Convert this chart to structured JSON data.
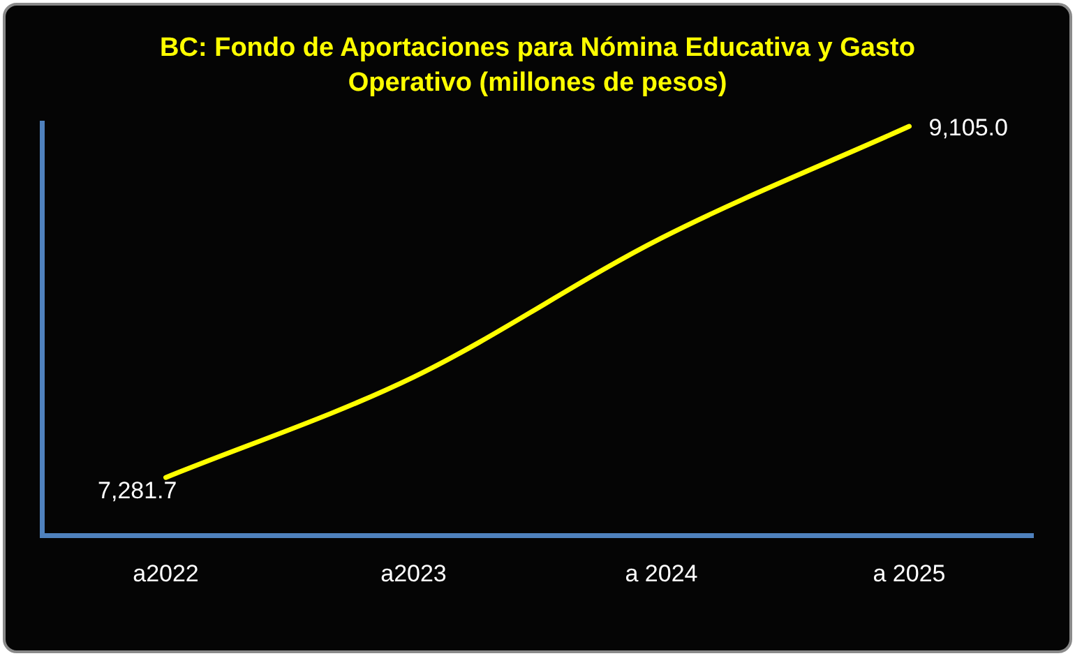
{
  "chart_data": {
    "type": "line",
    "title": "BC: Fondo de Aportaciones para Nómina Educativa y Gasto Operativo (millones de pesos)",
    "categories": [
      "a2022",
      "a2023",
      "a 2024",
      "a 2025"
    ],
    "series": [
      {
        "color": "#ffff00",
        "values": [
          7281.7,
          7803,
          8525,
          9105.0
        ],
        "value_labels": [
          "7,281.7",
          null,
          null,
          "9,105.0"
        ]
      }
    ],
    "marker": "none",
    "line_style": "solid",
    "grid": false,
    "legend": false,
    "tick_labels": "x"
  }
}
